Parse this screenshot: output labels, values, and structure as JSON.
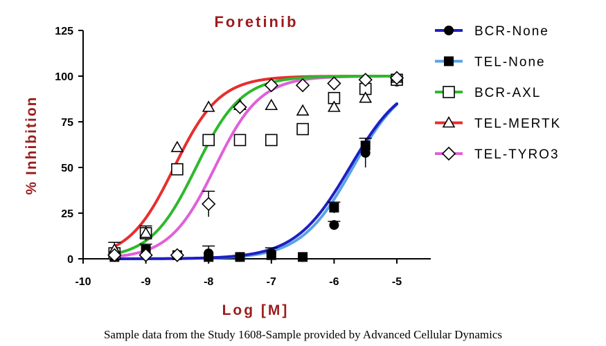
{
  "chart_data": {
    "type": "scatter",
    "title": "Foretinib",
    "xlabel": "Log [M]",
    "ylabel": "% Inhibition",
    "xlim": [
      -10,
      -5
    ],
    "ylim": [
      0,
      125
    ],
    "x_ticks": [
      "-10",
      "-9",
      "-8",
      "-7",
      "-6",
      "-5"
    ],
    "y_ticks": [
      "0",
      "25",
      "50",
      "75",
      "100",
      "125"
    ],
    "legend_position": "right",
    "series": [
      {
        "name": "BCR-None",
        "color": "#1f1fc4",
        "marker": "filled-circle",
        "points": [
          [
            -9.5,
            2
          ],
          [
            -9,
            3
          ],
          [
            -8.5,
            2
          ],
          [
            -8,
            3
          ],
          [
            -7.5,
            1
          ],
          [
            -7,
            3
          ],
          [
            -6.5,
            1
          ],
          [
            -6,
            18.5
          ],
          [
            -5.5,
            58
          ],
          [
            -5,
            97
          ]
        ],
        "errors": [
          [
            -8,
            4
          ],
          [
            -7,
            3
          ],
          [
            -6,
            2
          ],
          [
            -5.5,
            8
          ]
        ],
        "fit": {
          "top": 100,
          "bottom": 0,
          "logEC50": -5.75,
          "hill": 1.0
        }
      },
      {
        "name": "TEL-None",
        "color": "#5aa2e6",
        "marker": "filled-square",
        "points": [
          [
            -9.5,
            1
          ],
          [
            -9,
            5
          ],
          [
            -8.5,
            2
          ],
          [
            -8,
            1
          ],
          [
            -7.5,
            1
          ],
          [
            -7,
            2
          ],
          [
            -6.5,
            1
          ],
          [
            -6,
            28
          ],
          [
            -5.5,
            62
          ],
          [
            -5,
            98
          ]
        ],
        "errors": [
          [
            -9,
            3
          ],
          [
            -6,
            3
          ],
          [
            -5.5,
            4
          ]
        ],
        "fit": {
          "top": 100,
          "bottom": 0,
          "logEC50": -5.7,
          "hill": 1.05
        }
      },
      {
        "name": "BCR-AXL",
        "color": "#2eb82e",
        "marker": "open-square",
        "points": [
          [
            -9.5,
            3
          ],
          [
            -9,
            14
          ],
          [
            -8.5,
            49
          ],
          [
            -8,
            65
          ],
          [
            -7.5,
            65
          ],
          [
            -7,
            65
          ],
          [
            -6.5,
            71
          ],
          [
            -6,
            88
          ],
          [
            -5.5,
            93
          ],
          [
            -5,
            98
          ]
        ],
        "errors": [
          [
            -9,
            4
          ]
        ],
        "fit": {
          "top": 100,
          "bottom": 0,
          "logEC50": -8.2,
          "hill": 1.2
        }
      },
      {
        "name": "TEL-MERTK",
        "color": "#e62e2e",
        "marker": "open-triangle",
        "points": [
          [
            -9.5,
            5
          ],
          [
            -9,
            14
          ],
          [
            -8.5,
            61
          ],
          [
            -8,
            83
          ],
          [
            -7.5,
            84
          ],
          [
            -7,
            84
          ],
          [
            -6.5,
            81
          ],
          [
            -6,
            83
          ],
          [
            -5.5,
            88
          ],
          [
            -5,
            99
          ]
        ],
        "errors": [
          [
            -9.5,
            4
          ]
        ],
        "fit": {
          "top": 100,
          "bottom": 0,
          "logEC50": -8.55,
          "hill": 1.2
        }
      },
      {
        "name": "TEL-TYRO3",
        "color": "#e060d8",
        "marker": "open-diamond",
        "points": [
          [
            -9.5,
            2
          ],
          [
            -9,
            2
          ],
          [
            -8.5,
            2
          ],
          [
            -8,
            30
          ],
          [
            -7.5,
            83
          ],
          [
            -7,
            95
          ],
          [
            -6.5,
            95
          ],
          [
            -6,
            96
          ],
          [
            -5.5,
            98
          ],
          [
            -5,
            99
          ]
        ],
        "errors": [
          [
            -8,
            7
          ]
        ],
        "fit": {
          "top": 100,
          "bottom": 0,
          "logEC50": -7.9,
          "hill": 1.2
        }
      }
    ]
  },
  "caption": "Sample data from the Study 1608-Sample provided by Advanced Cellular Dynamics"
}
